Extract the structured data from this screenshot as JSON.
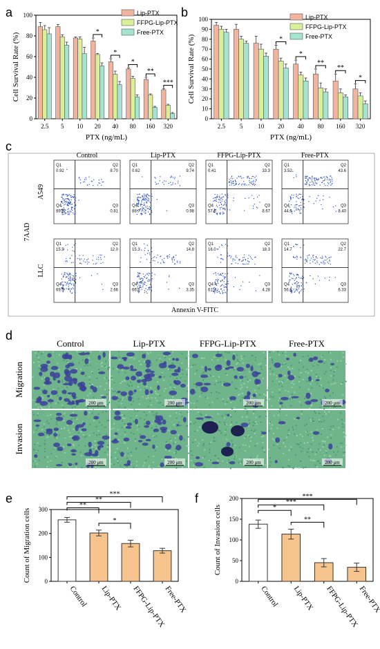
{
  "colors": {
    "lip": "#f2b49e",
    "ffpg": "#d9ef9a",
    "free": "#a6e4d2",
    "white": "#ffffff",
    "orange": "#f7c48e",
    "dot": "#2a4fc2",
    "cell": "#3b3f9a",
    "bg": "#3f9a7a"
  },
  "labels": {
    "a": "a",
    "b": "b",
    "c": "c",
    "d": "d",
    "e": "e",
    "f": "f"
  },
  "chart_data": [
    {
      "id": "a",
      "type": "bar",
      "categories": [
        "2.5",
        "5",
        "10",
        "20",
        "40",
        "80",
        "160",
        "320"
      ],
      "series": [
        {
          "name": "Lip-PTX",
          "values": [
            89,
            89,
            78,
            75,
            55,
            48,
            38,
            28
          ],
          "err": [
            4,
            2,
            1,
            3,
            3,
            1,
            2,
            1
          ]
        },
        {
          "name": "FFPG-Lip-PTX",
          "values": [
            86,
            79,
            77,
            62,
            43,
            39,
            23,
            13
          ],
          "err": [
            4,
            2,
            2,
            1,
            3,
            2,
            1,
            1
          ]
        },
        {
          "name": "Free-PTX",
          "values": [
            82,
            71,
            63,
            51,
            33,
            21,
            11,
            5
          ],
          "err": [
            6,
            3,
            6,
            3,
            3,
            2,
            1,
            1
          ]
        }
      ],
      "xlabel": "PTX (ng/mL)",
      "ylabel": "Cell Survival Rate (%)",
      "ylim": [
        0,
        100
      ],
      "yticks": [
        0,
        20,
        40,
        60,
        80,
        100
      ],
      "sig": [
        {
          "i": 3,
          "t": "*"
        },
        {
          "i": 4,
          "t": "*"
        },
        {
          "i": 5,
          "t": "*"
        },
        {
          "i": 6,
          "t": "**"
        },
        {
          "i": 7,
          "t": "***"
        }
      ]
    },
    {
      "id": "b",
      "type": "bar",
      "categories": [
        "2.5",
        "5",
        "10",
        "20",
        "40",
        "80",
        "160",
        "320"
      ],
      "series": [
        {
          "name": "Lip-PTX",
          "values": [
            94,
            90,
            76,
            70,
            55,
            45,
            38,
            30
          ],
          "err": [
            3,
            5,
            7,
            4,
            4,
            5,
            7,
            5
          ]
        },
        {
          "name": "FFPG-Lip-PTX",
          "values": [
            90,
            80,
            70,
            58,
            44,
            31,
            26,
            23
          ],
          "err": [
            3,
            3,
            5,
            3,
            3,
            5,
            4,
            3
          ]
        },
        {
          "name": "Free-PTX",
          "values": [
            87,
            76,
            63,
            51,
            38,
            27,
            22,
            15
          ],
          "err": [
            3,
            2,
            3,
            4,
            3,
            3,
            2,
            3
          ]
        }
      ],
      "xlabel": "PTX (ng/mL)",
      "ylabel": "Cell Survival Rate (%)",
      "ylim": [
        0,
        100
      ],
      "yticks": [
        0,
        10,
        20,
        30,
        40,
        50,
        60,
        70,
        80,
        90,
        100
      ],
      "sig": [
        {
          "i": 3,
          "t": "*"
        },
        {
          "i": 4,
          "t": "*"
        },
        {
          "i": 5,
          "t": "**"
        },
        {
          "i": 6,
          "t": "**"
        },
        {
          "i": 7,
          "t": "*"
        }
      ]
    },
    {
      "id": "e",
      "type": "bar",
      "categories": [
        "Control",
        "Lip-PTX",
        "FFPG-Lip-PTX",
        "Free-PTX"
      ],
      "values": [
        257,
        202,
        158,
        128
      ],
      "err": [
        10,
        12,
        14,
        10
      ],
      "ylabel": "Count of Migration cells",
      "ylim": [
        0,
        300
      ],
      "yticks": [
        0,
        100,
        200,
        300
      ],
      "brackets": [
        {
          "a": 0,
          "b": 1,
          "t": "**"
        },
        {
          "a": 0,
          "b": 2,
          "t": "**"
        },
        {
          "a": 0,
          "b": 3,
          "t": "***"
        },
        {
          "a": 1,
          "b": 2,
          "t": "*"
        }
      ]
    },
    {
      "id": "f",
      "type": "bar",
      "categories": [
        "Control",
        "Lip-PTX",
        "FFPG-Lip-PTX",
        "Free-PTX"
      ],
      "values": [
        138,
        114,
        45,
        34
      ],
      "err": [
        10,
        12,
        10,
        10
      ],
      "ylabel": "Count of Invasion cells",
      "ylim": [
        0,
        200
      ],
      "yticks": [
        0,
        50,
        100,
        150,
        200
      ],
      "brackets": [
        {
          "a": 0,
          "b": 1,
          "t": "*"
        },
        {
          "a": 0,
          "b": 2,
          "t": "***"
        },
        {
          "a": 0,
          "b": 3,
          "t": "***"
        },
        {
          "a": 1,
          "b": 2,
          "t": "**"
        }
      ]
    }
  ],
  "flow": {
    "columns": [
      "Control",
      "Lip-PTX",
      "FFPG-Lip-PTX",
      "Free-PTX"
    ],
    "rows": [
      "A549",
      "LLC"
    ],
    "ylabel": "7AAD",
    "xlabel": "Annexin V-FITC",
    "quadrant_names": [
      "Q1",
      "Q2",
      "Q3",
      "Q4"
    ],
    "values": [
      [
        [
          "0.92",
          "8.70",
          "0.81",
          "89.6"
        ],
        [
          "0.62",
          "9.74",
          "0.98",
          "88.7"
        ],
        [
          "0.41",
          "33.3",
          "8.67",
          "57.6"
        ],
        [
          "3.52",
          "43.6",
          "8.40",
          "44.5"
        ]
      ],
      [
        [
          "15.9",
          "12.0",
          "2.66",
          "69.5"
        ],
        [
          "15.3",
          "14.8",
          "3.35",
          "66.6"
        ],
        [
          "16.0",
          "18.3",
          "4.28",
          "61.4"
        ],
        [
          "14.7",
          "22.7",
          "6.33",
          "56.3"
        ]
      ]
    ]
  },
  "micro": {
    "columns": [
      "Control",
      "Lip-PTX",
      "FFPG-Lip-PTX",
      "Free-PTX"
    ],
    "rows": [
      "Migration",
      "Invasion"
    ],
    "scale": "200 μm",
    "density": [
      [
        0.9,
        0.7,
        0.45,
        0.3
      ],
      [
        0.55,
        0.5,
        0.15,
        0.1
      ]
    ]
  }
}
